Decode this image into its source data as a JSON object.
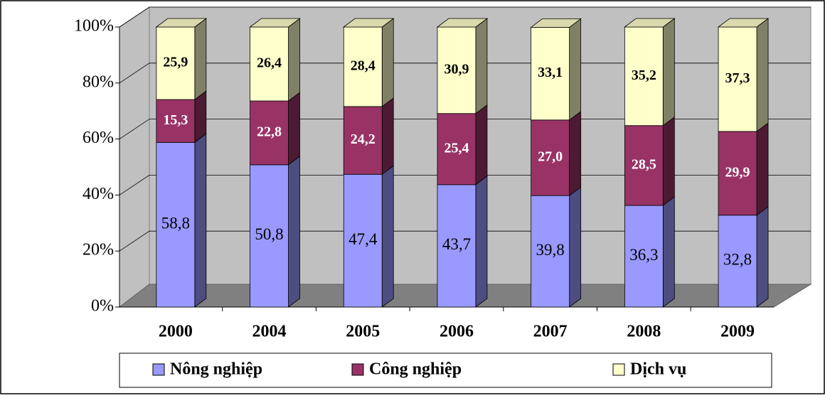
{
  "chart_data": {
    "type": "bar",
    "stacked": true,
    "categories": [
      "2000",
      "2004",
      "2005",
      "2006",
      "2007",
      "2008",
      "2009"
    ],
    "series": [
      {
        "name": "Nông nghiệp",
        "color": "#9999ff",
        "values": [
          58.8,
          50.8,
          47.4,
          43.7,
          39.8,
          36.3,
          32.8
        ],
        "value_labels": [
          "58,8",
          "50,8",
          "47,4",
          "43,7",
          "39,8",
          "36,3",
          "32,8"
        ]
      },
      {
        "name": "Công nghiệp",
        "color": "#993366",
        "values": [
          15.3,
          22.8,
          24.2,
          25.4,
          27.0,
          28.5,
          29.9
        ],
        "value_labels": [
          "15,3",
          "22,8",
          "24,2",
          "25,4",
          "27,0",
          "28,5",
          "29,9"
        ]
      },
      {
        "name": "Dịch vụ",
        "color": "#ffffcc",
        "values": [
          25.9,
          26.4,
          28.4,
          30.9,
          33.1,
          35.2,
          37.3
        ],
        "value_labels": [
          "25,9",
          "26,4",
          "28,4",
          "30,9",
          "33,1",
          "35,2",
          "37,3"
        ]
      }
    ],
    "ylim": [
      0,
      100
    ],
    "yticks": [
      {
        "value": 0,
        "label": "0%"
      },
      {
        "value": 20,
        "label": "20%"
      },
      {
        "value": 40,
        "label": "40%"
      },
      {
        "value": 60,
        "label": "60%"
      },
      {
        "value": 80,
        "label": "80%"
      },
      {
        "value": 100,
        "label": "100%"
      }
    ],
    "grid": true,
    "legend": "bottom"
  }
}
